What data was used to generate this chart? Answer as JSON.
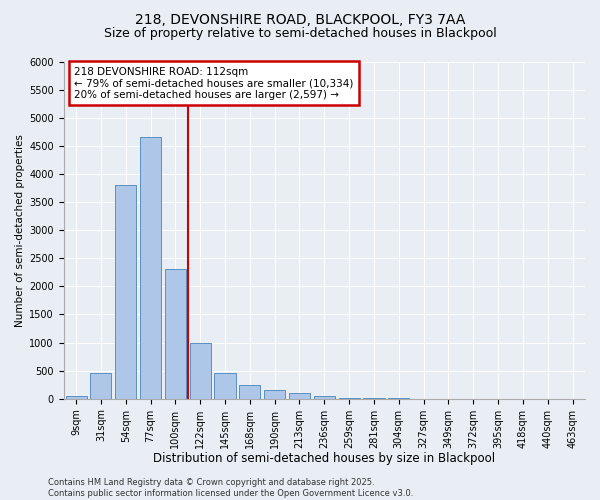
{
  "title1": "218, DEVONSHIRE ROAD, BLACKPOOL, FY3 7AA",
  "title2": "Size of property relative to semi-detached houses in Blackpool",
  "xlabel": "Distribution of semi-detached houses by size in Blackpool",
  "ylabel": "Number of semi-detached properties",
  "categories": [
    "9sqm",
    "31sqm",
    "54sqm",
    "77sqm",
    "100sqm",
    "122sqm",
    "145sqm",
    "168sqm",
    "190sqm",
    "213sqm",
    "236sqm",
    "259sqm",
    "281sqm",
    "304sqm",
    "327sqm",
    "349sqm",
    "372sqm",
    "395sqm",
    "418sqm",
    "440sqm",
    "463sqm"
  ],
  "values": [
    50,
    450,
    3800,
    4650,
    2300,
    1000,
    450,
    250,
    150,
    100,
    50,
    10,
    5,
    5,
    2,
    2,
    2,
    2,
    1,
    1,
    1
  ],
  "bar_color": "#aec6e8",
  "bar_edge_color": "#5a8fc0",
  "vline_color": "#cc0000",
  "annotation_line1": "218 DEVONSHIRE ROAD: 112sqm",
  "annotation_line2": "← 79% of semi-detached houses are smaller (10,334)",
  "annotation_line3": "20% of semi-detached houses are larger (2,597) →",
  "annotation_box_color": "white",
  "annotation_box_edge_color": "#cc0000",
  "ylim": [
    0,
    6000
  ],
  "yticks": [
    0,
    500,
    1000,
    1500,
    2000,
    2500,
    3000,
    3500,
    4000,
    4500,
    5000,
    5500,
    6000
  ],
  "background_color": "#e8eef4",
  "grid_color": "white",
  "footer_text": "Contains HM Land Registry data © Crown copyright and database right 2025.\nContains public sector information licensed under the Open Government Licence v3.0.",
  "title1_fontsize": 10,
  "title2_fontsize": 9,
  "xlabel_fontsize": 8.5,
  "ylabel_fontsize": 7.5,
  "tick_fontsize": 7,
  "annotation_fontsize": 7.5,
  "footer_fontsize": 6
}
